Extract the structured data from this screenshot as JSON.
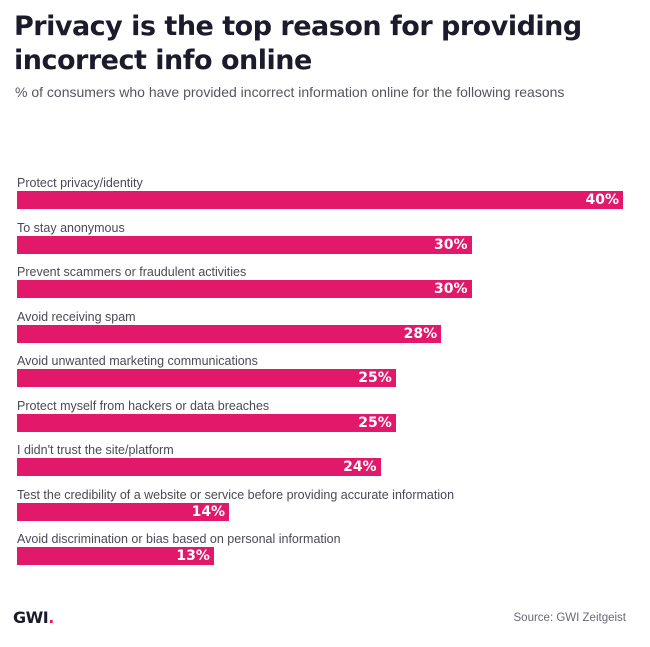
{
  "chart_data": {
    "type": "bar",
    "orientation": "horizontal",
    "title": "Privacy is the top reason for providing incorrect info online",
    "subtitle": "% of consumers who have provided incorrect information online for the following reasons",
    "xlabel": "",
    "ylabel": "",
    "unit": "%",
    "xlim": [
      0,
      40
    ],
    "grid": false,
    "legend": "none",
    "categories": [
      "Protect privacy/identity",
      "To stay anonymous",
      "Prevent scammers or fraudulent activities",
      "Avoid receiving spam",
      "Avoid unwanted marketing communications",
      "Protect myself from hackers or data breaches",
      "I didn't trust the site/platform",
      "Test the credibility of a website or service before providing accurate information",
      "Avoid discrimination or bias based on personal information"
    ],
    "values": [
      40,
      30,
      30,
      28,
      25,
      25,
      24,
      14,
      13
    ],
    "value_labels": [
      "40%",
      "30%",
      "30%",
      "28%",
      "25%",
      "25%",
      "24%",
      "14%",
      "13%"
    ],
    "bar_color": "#e2186a"
  },
  "footer": {
    "logo_text": "GWI",
    "logo_dot": ".",
    "source": "Source: GWI Zeitgeist"
  }
}
